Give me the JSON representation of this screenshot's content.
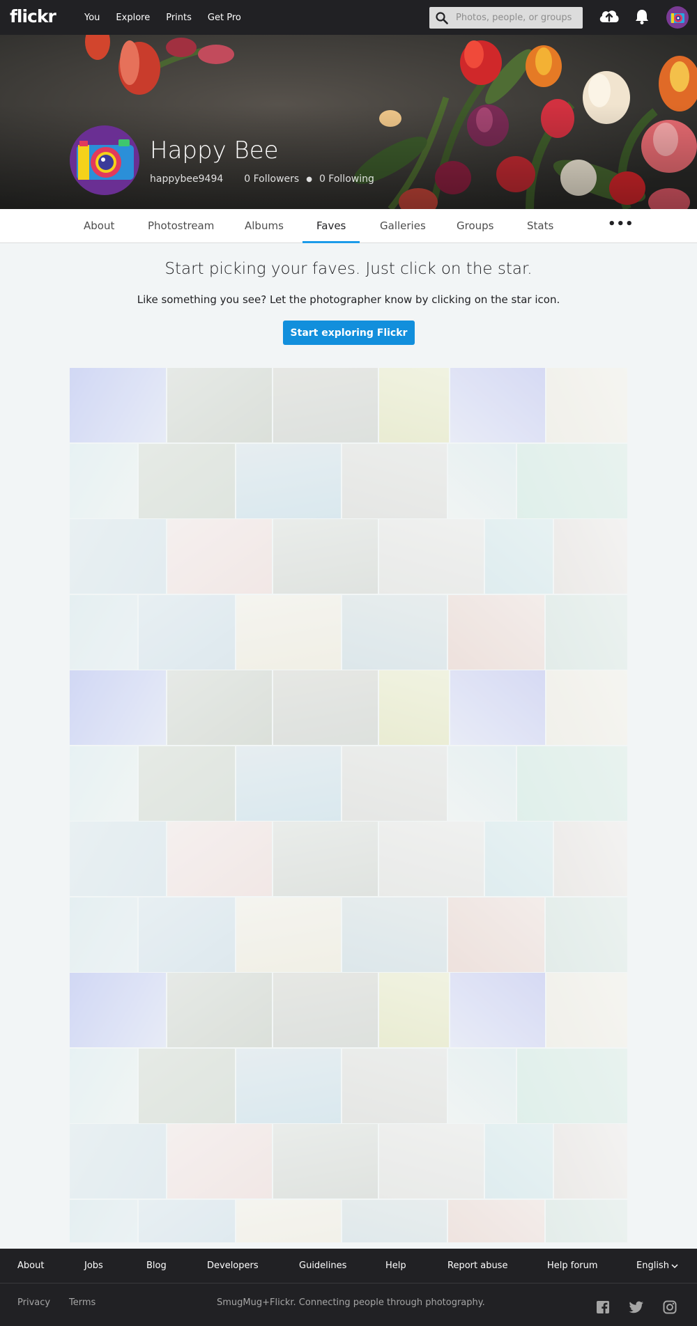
{
  "topnav": {
    "logo": "flickr",
    "links": [
      "You",
      "Explore",
      "Prints",
      "Get Pro"
    ],
    "search_placeholder": "Photos, people, or groups"
  },
  "profile": {
    "name": "Happy Bee",
    "username": "happybee9494",
    "followers": "0 Followers",
    "following": "0 Following"
  },
  "subnav": {
    "tabs": [
      "About",
      "Photostream",
      "Albums",
      "Faves",
      "Galleries",
      "Groups",
      "Stats"
    ],
    "active": "Faves",
    "more": "•••"
  },
  "faves": {
    "title": "Start picking your faves. Just click on the star.",
    "description": "Like something you see? Let the photographer know by clicking on the star icon.",
    "cta_label": "Start exploring Flickr"
  },
  "footer": {
    "links": [
      "About",
      "Jobs",
      "Blog",
      "Developers",
      "Guidelines",
      "Help",
      "Report abuse",
      "Help forum",
      "English"
    ],
    "bottom_links": [
      "Privacy",
      "Terms"
    ],
    "tagline": "SmugMug+Flickr. Connecting people through photography.",
    "social_icons": [
      "facebook-icon",
      "twitter-icon",
      "instagram-icon"
    ]
  },
  "colors": {
    "topbar": "#212124",
    "accent": "#128fdc",
    "active_tab_underline": "#1c9be9",
    "page_background": "#f2f5f6"
  }
}
